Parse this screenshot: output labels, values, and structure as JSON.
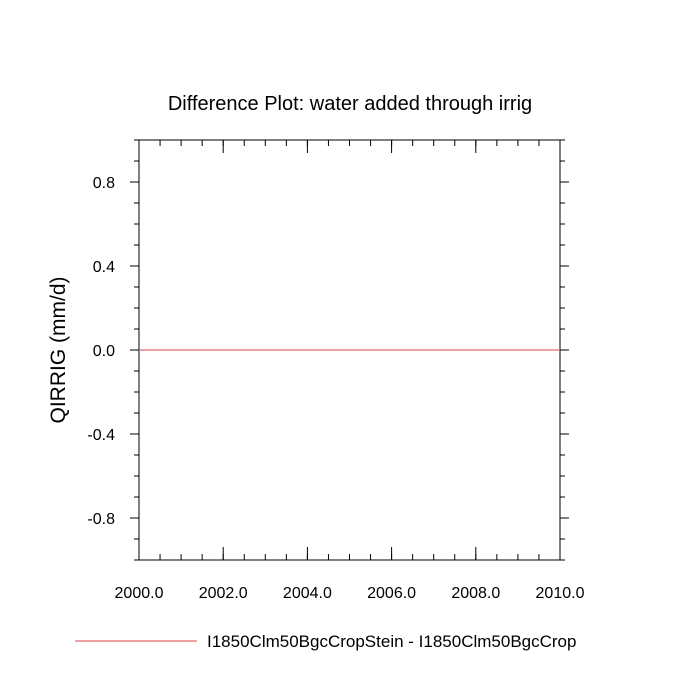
{
  "chart_data": {
    "type": "line",
    "title": "Difference Plot: water added through irrig",
    "xlabel": "",
    "ylabel": "QIRRIG  (mm/d)",
    "xlim": [
      2000.0,
      2010.0
    ],
    "ylim": [
      -1.0,
      1.0
    ],
    "x_ticks": [
      2000.0,
      2002.0,
      2004.0,
      2006.0,
      2008.0,
      2010.0
    ],
    "x_tick_labels": [
      "2000.0",
      "2002.0",
      "2004.0",
      "2006.0",
      "2008.0",
      "2010.0"
    ],
    "y_ticks": [
      0.8,
      0.4,
      0.0,
      -0.4,
      -0.8
    ],
    "y_tick_labels": [
      "0.8",
      "0.4",
      "0.0",
      "-0.4",
      "-0.8"
    ],
    "grid": false,
    "legend_position": "bottom",
    "series": [
      {
        "name": "I1850Clm50BgcCropStein - I1850Clm50BgcCrop",
        "color": "#e06a6a",
        "x": [
          2000.0,
          2010.0
        ],
        "values": [
          0.0,
          0.0
        ]
      }
    ]
  }
}
